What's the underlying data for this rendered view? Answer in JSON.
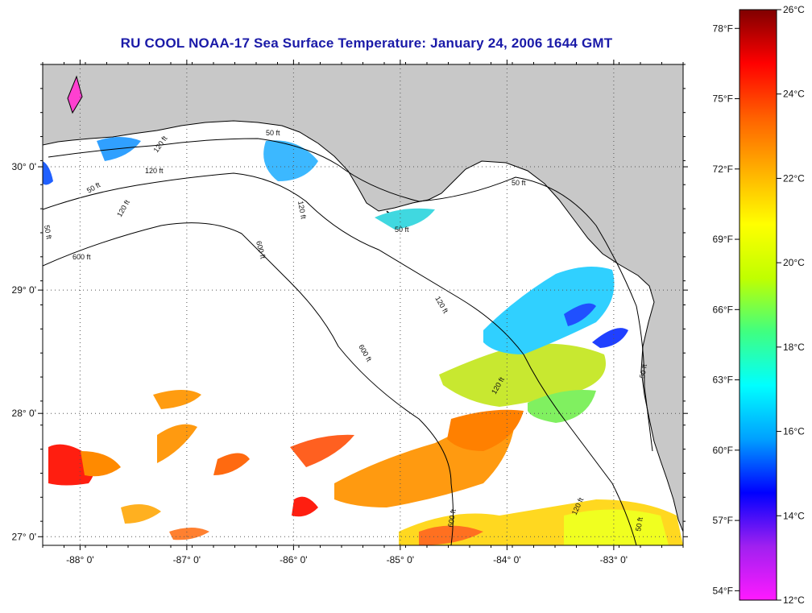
{
  "title": "RU COOL  NOAA-17  Sea Surface Temperature:  January 24, 2006 1644 GMT",
  "map": {
    "lat_labels": [
      "30° 0'",
      "29° 0'",
      "28° 0'",
      "27° 0'"
    ],
    "lat_values": [
      30,
      29,
      28,
      27
    ],
    "lon_labels": [
      "-88° 0'",
      "-87° 0'",
      "-86° 0'",
      "-85° 0'",
      "-84° 0'",
      "-83° 0'"
    ],
    "lon_values": [
      -88,
      -87,
      -86,
      -85,
      -84,
      -83
    ],
    "lon_range": [
      -88.35,
      -82.35
    ],
    "lat_range": [
      26.93,
      30.83
    ],
    "land_color": "#c8c8c8",
    "ocean_color": "#ffffff",
    "grid": "dotted",
    "contour_labels": [
      "600 ft",
      "600 ft",
      "600 ft",
      "600 ft",
      "120 ft",
      "120 ft",
      "120 ft",
      "120 ft",
      "120 ft",
      "120 ft",
      "120 ft",
      "50 ft",
      "50 ft",
      "50 ft",
      "50 ft",
      "50 ft",
      "50 ft",
      "50 ft"
    ]
  },
  "colorbar": {
    "celsius_labels": [
      "26°C",
      "24°C",
      "22°C",
      "20°C",
      "18°C",
      "16°C",
      "14°C",
      "12°C"
    ],
    "fahrenheit_labels": [
      "78°F",
      "75°F",
      "72°F",
      "69°F",
      "66°F",
      "63°F",
      "60°F",
      "57°F",
      "54°F"
    ],
    "celsius_range": [
      12,
      26
    ],
    "colors": [
      "#ff1aff",
      "#a020f0",
      "#0000ff",
      "#00a0ff",
      "#00ffff",
      "#40ff80",
      "#c0ff00",
      "#ffff00",
      "#ffb000",
      "#ff6000",
      "#ff0000",
      "#800000"
    ]
  }
}
